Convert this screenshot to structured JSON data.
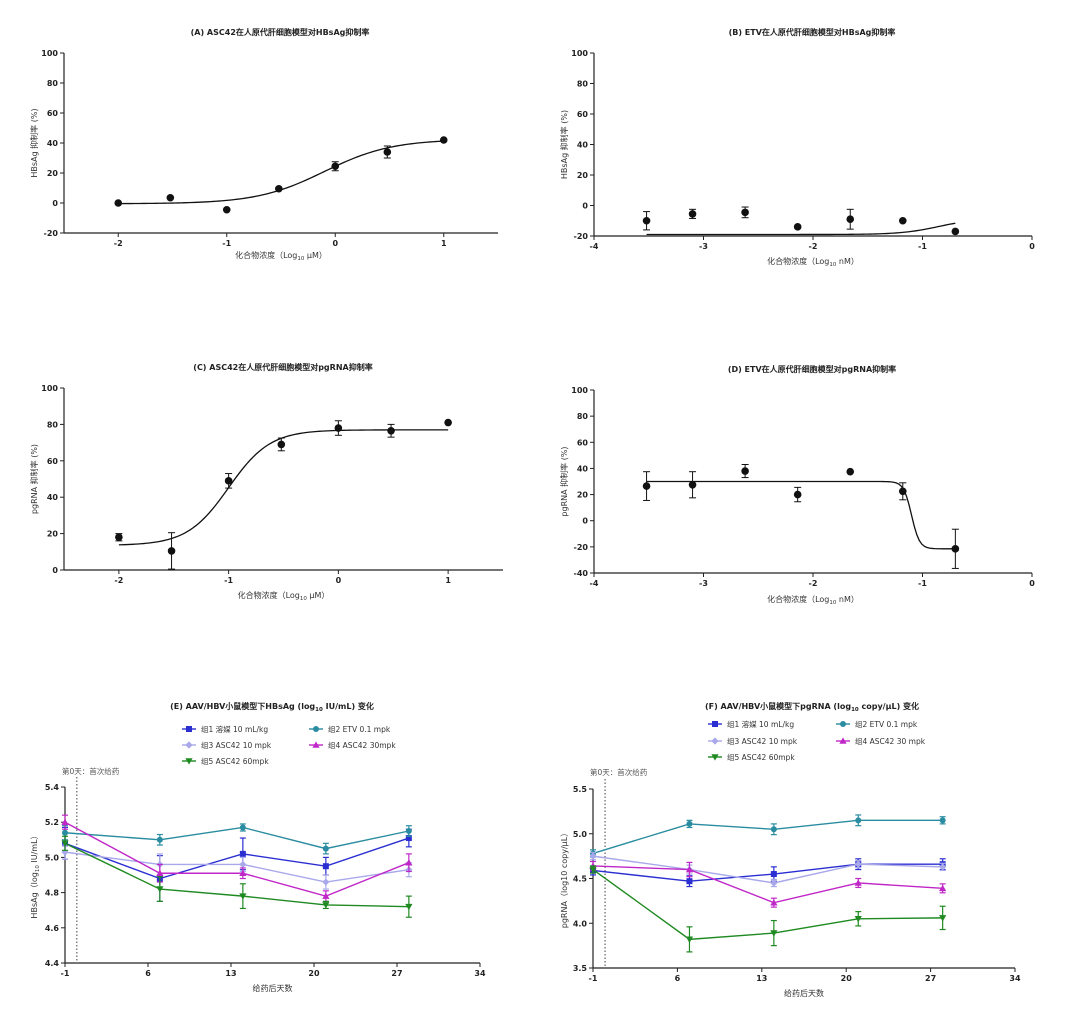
{
  "chart_data": [
    {
      "id": "A",
      "type": "scatter",
      "title": "(A)  ASC42在人原代肝细胞模型对HBsAg抑制率",
      "xlabel_pre": "化合物浓度（Log",
      "xlabel_sub": "10",
      "xlabel_post": " μM）",
      "ylabel": "HBsAg 抑制率 (%)",
      "xlim": [
        -2.5,
        1.5
      ],
      "ylim": [
        -20,
        100
      ],
      "xticks": [
        -2,
        -1,
        0,
        1
      ],
      "yticks": [
        -20,
        0,
        20,
        40,
        60,
        80,
        100
      ],
      "points": [
        {
          "x": -2,
          "y": 0,
          "err": 0
        },
        {
          "x": -1.52,
          "y": 3.5,
          "err": 0
        },
        {
          "x": -1.0,
          "y": -4.5,
          "err": 0
        },
        {
          "x": -0.52,
          "y": 9.5,
          "err": 0
        },
        {
          "x": 0.0,
          "y": 24.5,
          "err": 3
        },
        {
          "x": 0.48,
          "y": 34,
          "err": 4
        },
        {
          "x": 1.0,
          "y": 42,
          "err": 0
        }
      ],
      "fit": {
        "bottom": -0.5,
        "top": 42.5,
        "logEC50": -0.1,
        "hill": 1.4,
        "from": -2,
        "to": 1
      }
    },
    {
      "id": "B",
      "type": "scatter",
      "title": "(B)  ETV在人原代肝细胞模型对HBsAg抑制率",
      "xlabel_pre": "化合物浓度（Log",
      "xlabel_sub": "10",
      "xlabel_post": " nM）",
      "ylabel": "HBsAg 抑制率 (%)",
      "xlim": [
        -4,
        0
      ],
      "ylim": [
        -20,
        100
      ],
      "xticks": [
        -4,
        -3,
        -2,
        -1,
        0
      ],
      "yticks": [
        -20,
        0,
        20,
        40,
        60,
        80,
        100
      ],
      "points": [
        {
          "x": -3.52,
          "y": -10,
          "err": 6
        },
        {
          "x": -3.1,
          "y": -5.5,
          "err": 3
        },
        {
          "x": -2.62,
          "y": -4.5,
          "err": 3.5
        },
        {
          "x": -2.14,
          "y": -14,
          "err": 0
        },
        {
          "x": -1.66,
          "y": -9,
          "err": 6.5
        },
        {
          "x": -1.18,
          "y": -10,
          "err": 0
        },
        {
          "x": -0.7,
          "y": -17,
          "err": 0
        }
      ],
      "fit": {
        "bottom": -19,
        "top": -8.5,
        "logEC50": -0.85,
        "hill": 2.5,
        "from": -3.52,
        "to": -0.7
      }
    },
    {
      "id": "C",
      "type": "scatter",
      "title": "(C)  ASC42在人原代肝细胞模型对pgRNA抑制率",
      "xlabel_pre": "化合物浓度（Log",
      "xlabel_sub": "10",
      "xlabel_post": " μM）",
      "ylabel": "pgRNA 抑制率 (%)",
      "xlim": [
        -2.5,
        1.5
      ],
      "ylim": [
        0,
        100
      ],
      "xticks": [
        -2,
        -1,
        0,
        1
      ],
      "yticks": [
        0,
        20,
        40,
        60,
        80,
        100
      ],
      "points": [
        {
          "x": -2,
          "y": 18,
          "err": 2
        },
        {
          "x": -1.52,
          "y": 10.5,
          "err": 10
        },
        {
          "x": -1.0,
          "y": 49,
          "err": 4
        },
        {
          "x": -0.52,
          "y": 69,
          "err": 3.5
        },
        {
          "x": 0.0,
          "y": 78,
          "err": 4
        },
        {
          "x": 0.48,
          "y": 76.5,
          "err": 3.5
        },
        {
          "x": 1.0,
          "y": 81,
          "err": 0
        }
      ],
      "fit": {
        "bottom": 13.5,
        "top": 77,
        "logEC50": -1.0,
        "hill": 2.3,
        "from": -2,
        "to": 1
      }
    },
    {
      "id": "D",
      "type": "scatter",
      "title": "(D)  ETV在人原代肝细胞模型对pgRNA抑制率",
      "xlabel_pre": "化合物浓度（Log",
      "xlabel_sub": "10",
      "xlabel_post": " nM）",
      "ylabel": "pgRNA 抑制率 (%)",
      "xlim": [
        -4,
        0
      ],
      "ylim": [
        -40,
        100
      ],
      "xticks": [
        -4,
        -3,
        -2,
        -1,
        0
      ],
      "yticks": [
        -40,
        -20,
        0,
        20,
        40,
        60,
        80,
        100
      ],
      "points": [
        {
          "x": -3.52,
          "y": 26.5,
          "err": 11
        },
        {
          "x": -3.1,
          "y": 27.5,
          "err": 10
        },
        {
          "x": -2.62,
          "y": 38,
          "err": 5
        },
        {
          "x": -2.14,
          "y": 20,
          "err": 5.5
        },
        {
          "x": -1.66,
          "y": 37.5,
          "err": 0
        },
        {
          "x": -1.18,
          "y": 22.5,
          "err": 6.5
        },
        {
          "x": -0.7,
          "y": -21.5,
          "err": 15
        }
      ],
      "fit": {
        "bottom": -21.5,
        "top": 30,
        "logEC50": -1.1,
        "hill": -12,
        "from": -3.52,
        "to": -0.7
      }
    },
    {
      "id": "E",
      "type": "line",
      "title": "(E)  AAV/HBV小鼠模型下HBsAg (log10 IU/mL) 变化",
      "title_pre": "(E)  AAV/HBV小鼠模型下HBsAg (log",
      "title_sub": "10",
      "title_post": " IU/mL) 变化",
      "xlabel": "给药后天数",
      "ylabel_pre": "HBsAg（log",
      "ylabel_sub": "10",
      "ylabel_post": " IU/mL）",
      "annotation": "第0天：首次给药",
      "vline_x": 0,
      "xlim": [
        -1,
        34
      ],
      "ylim": [
        4.4,
        5.4
      ],
      "xticks": [
        -1,
        6,
        13,
        20,
        27,
        34
      ],
      "yticks": [
        4.4,
        4.6,
        4.8,
        5.0,
        5.2,
        5.4
      ],
      "x": [
        -1,
        7,
        14,
        21,
        28
      ],
      "series": [
        {
          "name": "组1 溶媒 10 mL/kg",
          "color": "#2b2fd1",
          "marker": "square",
          "values": [
            5.08,
            4.88,
            5.02,
            4.95,
            5.11
          ],
          "err": [
            0.09,
            0.13,
            0.09,
            0.05,
            0.05
          ]
        },
        {
          "name": "组2 ETV 0.1 mpk",
          "color": "#2a8ca0",
          "marker": "circle",
          "values": [
            5.14,
            5.1,
            5.17,
            5.05,
            5.15
          ],
          "err": [
            0.04,
            0.03,
            0.02,
            0.03,
            0.03
          ]
        },
        {
          "name": "组3 ASC42 10 mpk",
          "color": "#a8a8ea",
          "marker": "diamond",
          "values": [
            5.03,
            4.96,
            4.96,
            4.86,
            4.93
          ],
          "err": [
            0.04,
            0.06,
            0.04,
            0.04,
            0.04
          ]
        },
        {
          "name": "组4 ASC42 30mpk",
          "color": "#c027c8",
          "marker": "triangle-up",
          "values": [
            5.2,
            4.91,
            4.91,
            4.78,
            4.97
          ],
          "err": [
            0.04,
            0.05,
            0.03,
            0.03,
            0.05
          ]
        },
        {
          "name": "组5 ASC42 60mpk",
          "color": "#1f8a21",
          "marker": "triangle-down",
          "values": [
            5.08,
            4.82,
            4.78,
            4.73,
            4.72
          ],
          "err": [
            0.04,
            0.07,
            0.07,
            0.02,
            0.06
          ]
        }
      ]
    },
    {
      "id": "F",
      "type": "line",
      "title": "(F)  AAV/HBV小鼠模型下pgRNA (log10 copy/μL) 变化",
      "title_pre": "(F)  AAV/HBV小鼠模型下pgRNA (log",
      "title_sub": "10",
      "title_post": " copy/μL) 变化",
      "xlabel": "给药后天数",
      "ylabel": "pgRNA（log10 copy/μL）",
      "annotation": "第0天：首次给药",
      "vline_x": 0,
      "xlim": [
        -1,
        34
      ],
      "ylim": [
        3.5,
        5.5
      ],
      "xticks": [
        -1,
        6,
        13,
        20,
        27,
        34
      ],
      "yticks": [
        3.5,
        4.0,
        4.5,
        5.0,
        5.5
      ],
      "x": [
        -1,
        7,
        14,
        21,
        28
      ],
      "series": [
        {
          "name": "组1 溶媒 10 mL/kg",
          "color": "#2b2fd1",
          "marker": "square",
          "values": [
            4.59,
            4.47,
            4.55,
            4.66,
            4.66
          ],
          "err": [
            0.05,
            0.06,
            0.08,
            0.06,
            0.06
          ]
        },
        {
          "name": "组2 ETV 0.1 mpk",
          "color": "#2a8ca0",
          "marker": "circle",
          "values": [
            4.78,
            5.11,
            5.05,
            5.15,
            5.15
          ],
          "err": [
            0.04,
            0.04,
            0.06,
            0.06,
            0.04
          ]
        },
        {
          "name": "组3 ASC42 10 mpk",
          "color": "#a8a8ea",
          "marker": "diamond",
          "values": [
            4.75,
            4.6,
            4.45,
            4.66,
            4.63
          ],
          "err": [
            0.04,
            0.05,
            0.04,
            0.04,
            0.04
          ]
        },
        {
          "name": "组4 ASC42 30 mpk",
          "color": "#c027c8",
          "marker": "triangle-up",
          "values": [
            4.64,
            4.6,
            4.23,
            4.45,
            4.39
          ],
          "err": [
            0.05,
            0.08,
            0.05,
            0.05,
            0.05
          ]
        },
        {
          "name": "组5 ASC42 60mpk",
          "color": "#1f8a21",
          "marker": "triangle-down",
          "values": [
            4.6,
            3.82,
            3.89,
            4.05,
            4.06
          ],
          "err": [
            0.04,
            0.14,
            0.14,
            0.08,
            0.13
          ]
        }
      ]
    }
  ]
}
